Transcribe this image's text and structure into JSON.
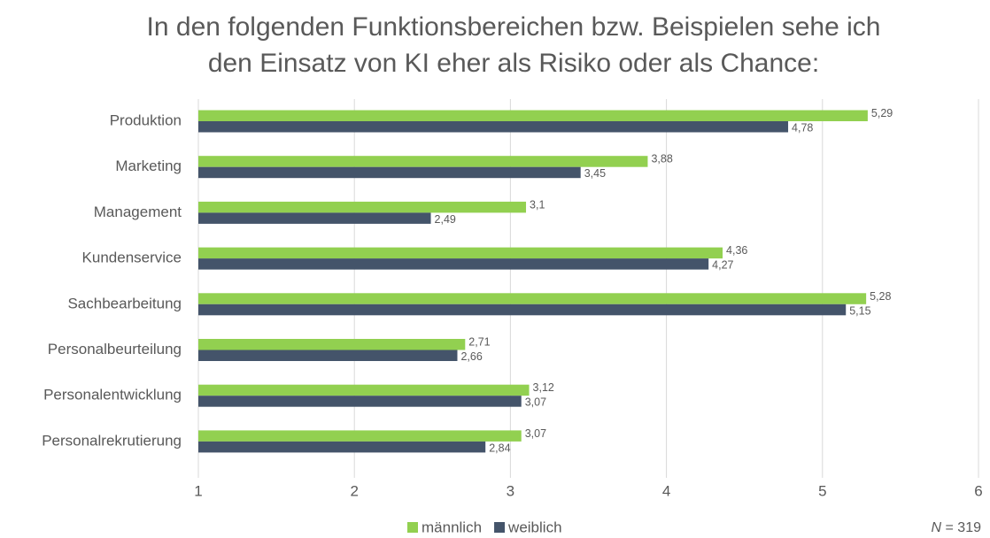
{
  "chart_data": {
    "type": "hbar",
    "title": [
      "In den folgenden Funktionsbereichen bzw. Beispielen sehe ich",
      "den Einsatz von KI eher als Risiko oder als Chance:"
    ],
    "categories": [
      "Produktion",
      "Marketing",
      "Management",
      "Kundenservice",
      "Sachbearbeitung",
      "Personalbeurteilung",
      "Personalentwicklung",
      "Personalrekrutierung"
    ],
    "series": [
      {
        "name": "männlich",
        "color": "#92d050",
        "values": [
          5.29,
          3.88,
          3.1,
          4.36,
          5.28,
          2.71,
          3.12,
          3.07
        ],
        "value_labels": [
          "5,29",
          "3,88",
          "3,1",
          "4,36",
          "5,28",
          "2,71",
          "3,12",
          "3,07"
        ]
      },
      {
        "name": "weiblich",
        "color": "#44546a",
        "values": [
          4.78,
          3.45,
          2.49,
          4.27,
          5.15,
          2.66,
          3.07,
          2.84
        ],
        "value_labels": [
          "4,78",
          "3,45",
          "2,49",
          "4,27",
          "5,15",
          "2,66",
          "3,07",
          "2,84"
        ]
      }
    ],
    "xlim": [
      1,
      6
    ],
    "xticks": [
      1,
      2,
      3,
      4,
      5,
      6
    ],
    "grid": true,
    "legend": "bottom",
    "note": {
      "symbol": "N",
      "text": "= 319"
    }
  }
}
